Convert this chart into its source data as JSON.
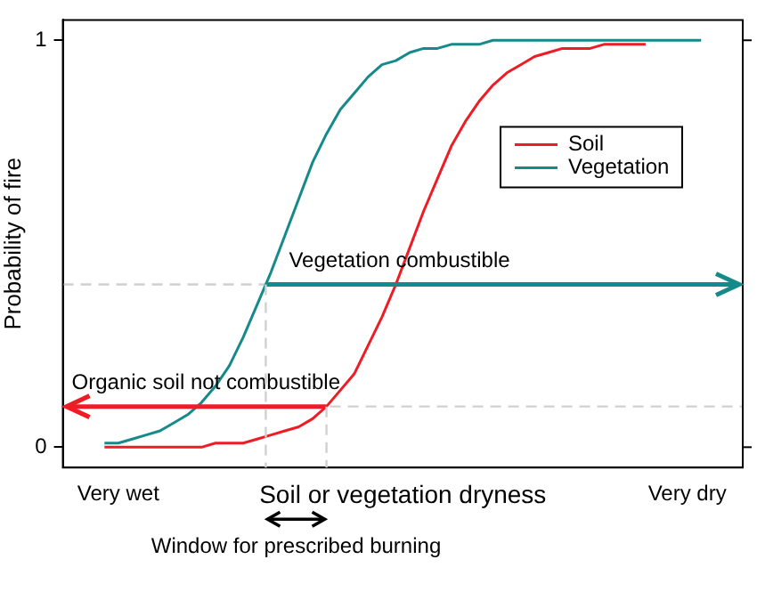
{
  "chart_data": {
    "type": "line",
    "xlabel": "Soil or vegetation dryness",
    "ylabel": "Probability of fire",
    "categories": [
      null,
      null,
      null,
      null,
      "Very wet",
      null,
      null,
      null,
      null,
      null,
      null,
      null,
      null,
      null,
      null,
      null,
      null,
      null,
      null,
      null,
      null,
      null,
      null,
      null,
      null,
      null,
      null,
      null,
      null,
      null,
      null,
      null,
      null,
      null,
      null,
      null,
      null,
      null,
      null,
      null,
      null,
      null,
      null,
      null,
      null,
      "Very dry",
      null,
      null,
      null,
      null
    ],
    "series": [
      {
        "name": "Soil",
        "color": "#ee1c25",
        "values": [
          null,
          null,
          null,
          0,
          0,
          0,
          0,
          0,
          0,
          0,
          0,
          0.01,
          0.01,
          0.01,
          0.02,
          0.03,
          0.04,
          0.05,
          0.07,
          0.1,
          0.14,
          0.18,
          0.25,
          0.32,
          0.4,
          0.49,
          0.58,
          0.66,
          0.74,
          0.8,
          0.85,
          0.89,
          0.92,
          0.94,
          0.96,
          0.97,
          0.98,
          0.98,
          0.98,
          0.99,
          0.99,
          0.99,
          0.99,
          null,
          null,
          null,
          null,
          null,
          null,
          null
        ]
      },
      {
        "name": "Vegetation",
        "color": "#168a8a",
        "values": [
          null,
          null,
          null,
          0.01,
          0.01,
          0.02,
          0.03,
          0.04,
          0.06,
          0.08,
          0.11,
          0.15,
          0.2,
          0.27,
          0.35,
          0.43,
          0.52,
          0.61,
          0.7,
          0.77,
          0.83,
          0.87,
          0.91,
          0.94,
          0.95,
          0.97,
          0.98,
          0.98,
          0.99,
          0.99,
          0.99,
          1,
          1,
          1,
          1,
          1,
          1,
          1,
          1,
          1,
          1,
          1,
          1,
          1,
          1,
          1,
          1,
          null,
          null,
          null
        ]
      }
    ],
    "ylim": [
      -0.05,
      1.05
    ],
    "yticks": [
      0,
      1
    ],
    "grid": false,
    "legend": "top right",
    "marker": "none",
    "line_style": "solid",
    "ref_lines": [
      {
        "axis": "y",
        "value": 0.4,
        "label": "Vegetation combustible",
        "color": "#d0d0d0",
        "line_style": "dashed"
      },
      {
        "axis": "y",
        "value": 0.1,
        "label": "Organic soil not combustible",
        "color": "#d0d0d0",
        "line_style": "dashed"
      }
    ],
    "annotations": [
      "Window for prescribed burning"
    ]
  }
}
